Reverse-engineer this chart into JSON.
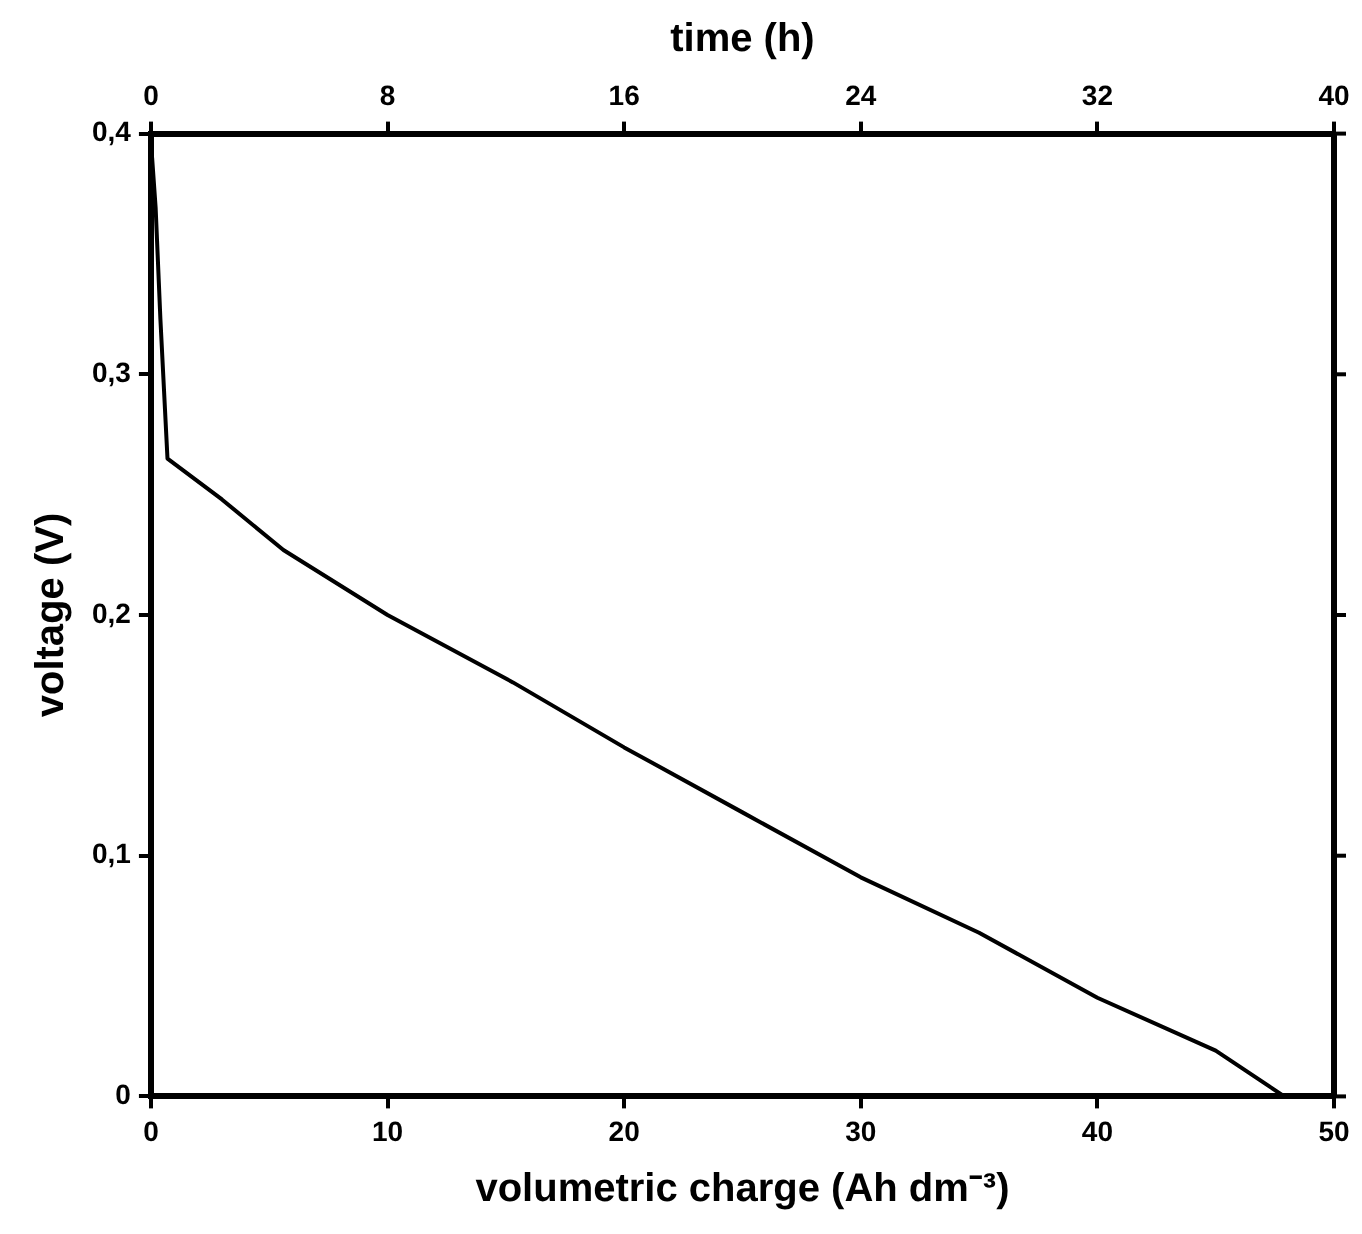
{
  "chart_data": {
    "type": "line",
    "xlabel": "volumetric charge (Ah dm⁻³)",
    "ylabel": "voltage (V)",
    "x2label": "time (h)",
    "xlim": [
      0,
      50
    ],
    "xticks": [
      0,
      10,
      20,
      30,
      40,
      50
    ],
    "x2lim": [
      0,
      40
    ],
    "x2ticks": [
      0,
      8,
      16,
      24,
      32,
      40
    ],
    "ylim": [
      0,
      0.4
    ],
    "yticks": [
      0,
      {
        "value": 0.1,
        "label": "0,1"
      },
      {
        "value": 0.2,
        "label": "0,2"
      },
      {
        "value": 0.3,
        "label": "0,3"
      },
      {
        "value": 0.4,
        "label": "0,4"
      }
    ],
    "grid": false,
    "legend": false,
    "marker": "none",
    "line_style": "solid",
    "series": [
      {
        "color": "#000000",
        "x": [
          0.05,
          0.2,
          0.4,
          0.7,
          3,
          5.6,
          10,
          15.3,
          20,
          25,
          30,
          35,
          40,
          45,
          47.9
        ],
        "values": [
          0.39,
          0.369,
          0.323,
          0.265,
          0.248,
          0.227,
          0.2,
          0.172,
          0.145,
          0.118,
          0.091,
          0.068,
          0.041,
          0.019,
          0
        ]
      }
    ]
  }
}
